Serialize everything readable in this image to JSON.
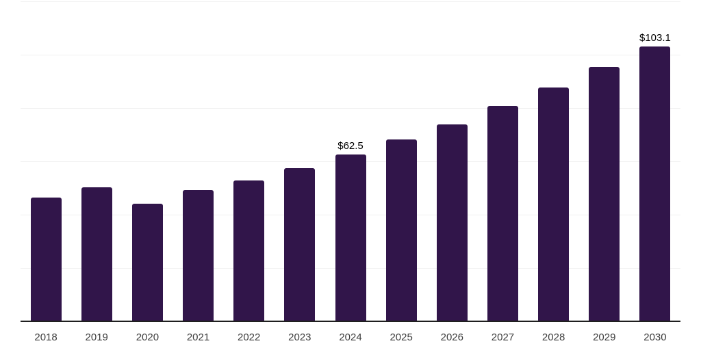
{
  "chart_data": {
    "type": "bar",
    "title": "",
    "xlabel": "",
    "ylabel": "",
    "categories": [
      "2018",
      "2019",
      "2020",
      "2021",
      "2022",
      "2023",
      "2024",
      "2025",
      "2026",
      "2027",
      "2028",
      "2029",
      "2030"
    ],
    "values": [
      46.3,
      50.3,
      44.2,
      49.3,
      52.7,
      57.4,
      62.5,
      68.2,
      73.9,
      80.8,
      87.6,
      95.5,
      103.1
    ],
    "value_labels": [
      {
        "index": 6,
        "text": "$62.5"
      },
      {
        "index": 12,
        "text": "$103.1"
      }
    ],
    "ylim": [
      0,
      120
    ],
    "gridline_step": 20,
    "grid": true,
    "legend_position": "none",
    "y_axis_tick_labels_visible": false,
    "colors": {
      "bar": "#31154a",
      "gridline": "#f0f0f0",
      "axis_line": "#1f1f1f",
      "tick_label": "#3d3d3d",
      "value_label": "#000000",
      "background": "#ffffff"
    }
  }
}
